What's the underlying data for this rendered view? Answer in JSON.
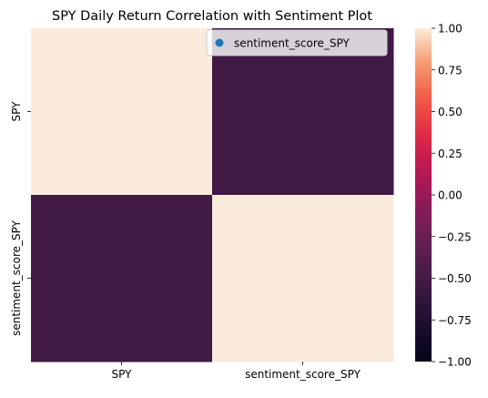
{
  "chart_data": {
    "type": "heatmap",
    "title": "SPY Daily Return Correlation with Sentiment Plot",
    "x_labels": [
      "SPY",
      "sentiment_score_SPY"
    ],
    "y_labels": [
      "SPY",
      "sentiment_score_SPY"
    ],
    "values": [
      [
        1.0,
        -0.53
      ],
      [
        -0.53,
        1.0
      ]
    ],
    "colorbar": {
      "vmin": -1.0,
      "vmax": 1.0,
      "ticks": [
        "1.00",
        "0.75",
        "0.50",
        "0.25",
        "0.00",
        "−0.25",
        "−0.50",
        "−0.75",
        "−1.00"
      ],
      "tick_values": [
        1.0,
        0.75,
        0.5,
        0.25,
        0.0,
        -0.25,
        -0.5,
        -0.75,
        -1.0
      ],
      "colormap": "rocket"
    },
    "legend": {
      "position": "top-right",
      "entries": [
        {
          "label": "sentiment_score_SPY",
          "color": "#1f77b4",
          "marker": "circle"
        }
      ]
    }
  }
}
